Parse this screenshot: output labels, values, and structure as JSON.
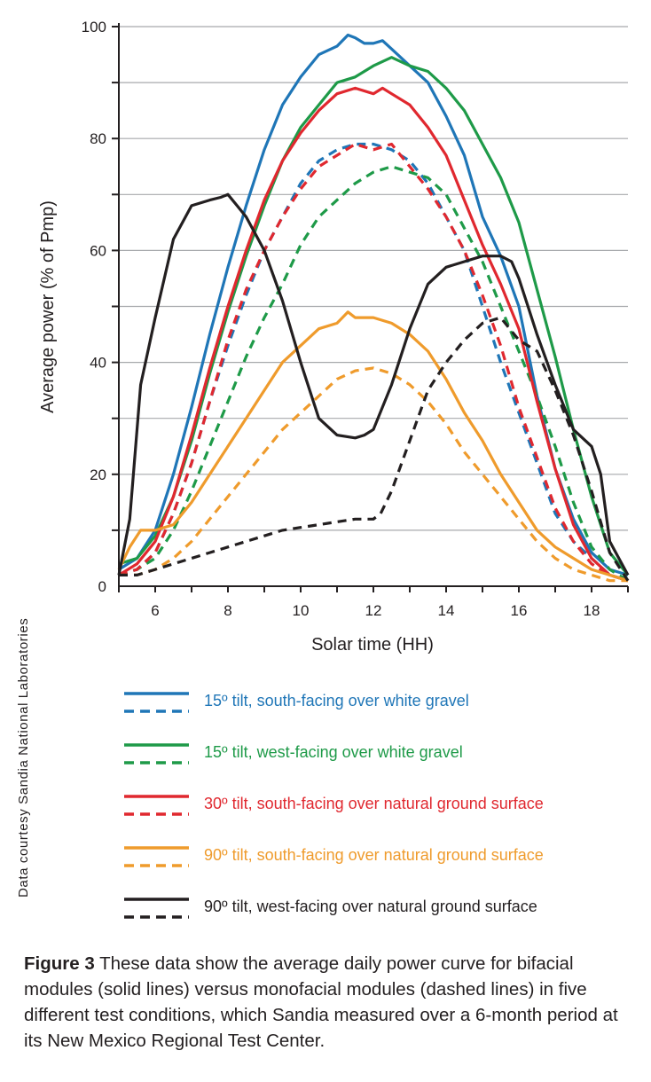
{
  "chart_data": {
    "type": "line",
    "title": "",
    "xlabel": "Solar time (HH)",
    "ylabel": "Average power (% of Pmp)",
    "xlim": [
      5,
      19
    ],
    "ylim": [
      0,
      100
    ],
    "x_ticks": [
      6,
      8,
      10,
      12,
      14,
      16,
      18
    ],
    "y_ticks": [
      0,
      20,
      40,
      60,
      80,
      100
    ],
    "y_tick_labels": [
      "0",
      "20",
      "40",
      "60",
      "80",
      "100"
    ],
    "grid": true,
    "legend_placement": "below",
    "series": [
      {
        "name": "15º tilt, south-facing over white gravel",
        "color": "#1f76b7",
        "style": "solid",
        "x": [
          5,
          5.5,
          6,
          6.5,
          7,
          7.5,
          8,
          8.5,
          9,
          9.5,
          10,
          10.5,
          11,
          11.3,
          11.5,
          11.75,
          12,
          12.25,
          12.5,
          13,
          13.5,
          14,
          14.5,
          15,
          15.5,
          16,
          16.5,
          17,
          17.5,
          18,
          18.5,
          19
        ],
        "y": [
          3,
          5,
          10,
          20,
          32,
          45,
          57,
          68,
          78,
          86,
          91,
          95,
          96.5,
          98.5,
          98,
          97,
          97,
          97.5,
          96,
          93,
          90,
          84,
          77,
          66,
          59,
          50,
          34,
          21,
          12,
          6,
          3,
          2
        ]
      },
      {
        "name": "15º tilt, south-facing over white gravel (monofacial)",
        "color": "#1f76b7",
        "style": "dashed",
        "x": [
          5,
          5.5,
          6,
          6.5,
          7,
          7.5,
          8,
          8.5,
          9,
          9.5,
          10,
          10.5,
          11,
          11.5,
          12,
          12.5,
          13,
          13.5,
          14,
          14.5,
          15,
          15.5,
          16,
          16.5,
          17,
          17.5,
          18,
          18.5,
          19
        ],
        "y": [
          2,
          3,
          6,
          13,
          22,
          33,
          43,
          52,
          60,
          66,
          72,
          76,
          78,
          79,
          79,
          78,
          76,
          72,
          66,
          60,
          50,
          40,
          31,
          22,
          13,
          8,
          5,
          2,
          1
        ]
      },
      {
        "name": "15º tilt, west-facing over white gravel",
        "color": "#1e9a48",
        "style": "solid",
        "x": [
          5,
          5.5,
          6,
          6.5,
          7,
          7.5,
          8,
          8.5,
          9,
          9.5,
          10,
          10.5,
          11,
          11.5,
          12,
          12.5,
          13,
          13.5,
          14,
          14.5,
          15,
          15.5,
          16,
          16.5,
          17,
          17.5,
          18,
          18.5,
          19
        ],
        "y": [
          4,
          5,
          9,
          16,
          26,
          38,
          49,
          59,
          68,
          76,
          82,
          86,
          90,
          91,
          93,
          94.5,
          93,
          92,
          89,
          85,
          79,
          73,
          65,
          53,
          41,
          28,
          16,
          6,
          2
        ]
      },
      {
        "name": "15º tilt, west-facing over white gravel (monofacial)",
        "color": "#1e9a48",
        "style": "dashed",
        "x": [
          5,
          5.5,
          6,
          6.5,
          7,
          7.5,
          8,
          8.5,
          9,
          9.5,
          10,
          10.5,
          11,
          11.5,
          12,
          12.5,
          13,
          13.5,
          14,
          14.5,
          15,
          15.5,
          16,
          16.5,
          17,
          17.5,
          18,
          18.5,
          19
        ],
        "y": [
          2,
          3,
          5,
          10,
          17,
          25,
          33,
          41,
          48,
          54,
          61,
          66,
          69,
          72,
          74,
          75,
          74,
          73,
          70,
          64,
          58,
          50,
          42,
          34,
          25,
          15,
          7,
          3,
          1
        ]
      },
      {
        "name": "30º tilt, south-facing over natural ground surface",
        "color": "#e0282f",
        "style": "solid",
        "x": [
          5,
          5.5,
          6,
          6.5,
          7,
          7.5,
          8,
          8.5,
          9,
          9.5,
          10,
          10.5,
          11,
          11.5,
          12,
          12.25,
          12.5,
          13,
          13.5,
          14,
          14.5,
          15,
          15.5,
          16,
          16.5,
          17,
          17.5,
          18,
          18.5,
          19
        ],
        "y": [
          2,
          4,
          8,
          16,
          27,
          39,
          50,
          60,
          69,
          76,
          81,
          85,
          88,
          89,
          88,
          89,
          88,
          86,
          82,
          77,
          69,
          61,
          54,
          46,
          33,
          21,
          11,
          5,
          2,
          1
        ]
      },
      {
        "name": "30º tilt, south-facing over natural ground surface (monofacial)",
        "color": "#e0282f",
        "style": "dashed",
        "x": [
          5,
          5.5,
          6,
          6.5,
          7,
          7.5,
          8,
          8.5,
          9,
          9.5,
          10,
          10.5,
          11,
          11.5,
          12,
          12.5,
          13,
          13.5,
          14,
          14.5,
          15,
          15.5,
          16,
          16.5,
          17,
          17.5,
          18,
          18.5,
          19
        ],
        "y": [
          2,
          3,
          6,
          13,
          22,
          33,
          44,
          53,
          60,
          66,
          71,
          75,
          77,
          79,
          78,
          79,
          75,
          71,
          66,
          60,
          52,
          43,
          32,
          23,
          14,
          8,
          4,
          2,
          1
        ]
      },
      {
        "name": "90º tilt, south-facing over natural ground surface",
        "color": "#ef9b2c",
        "style": "solid",
        "x": [
          5,
          5.3,
          5.6,
          6,
          6.5,
          7,
          7.5,
          8,
          8.5,
          9,
          9.5,
          10,
          10.5,
          11,
          11.3,
          11.5,
          12,
          12.5,
          13,
          13.5,
          14,
          14.5,
          15,
          15.5,
          16,
          16.5,
          17,
          17.5,
          18,
          18.5,
          19
        ],
        "y": [
          3,
          7,
          10,
          10,
          11,
          15,
          20,
          25,
          30,
          35,
          40,
          43,
          46,
          47,
          49,
          48,
          48,
          47,
          45,
          42,
          37,
          31,
          26,
          20,
          15,
          10,
          7,
          5,
          3,
          2,
          1
        ]
      },
      {
        "name": "90º tilt, south-facing over natural ground surface (monofacial)",
        "color": "#ef9b2c",
        "style": "dashed",
        "x": [
          5,
          5.5,
          6,
          6.5,
          7,
          7.5,
          8,
          8.5,
          9,
          9.5,
          10,
          10.5,
          11,
          11.5,
          12,
          12.5,
          13,
          13.5,
          14,
          14.5,
          15,
          15.5,
          16,
          16.5,
          17,
          17.5,
          18,
          18.5,
          19
        ],
        "y": [
          2,
          2,
          3,
          5,
          8,
          12,
          16,
          20,
          24,
          28,
          31,
          34,
          37,
          38.5,
          39,
          38,
          36,
          33,
          29,
          24,
          20,
          16,
          12,
          8,
          5,
          3,
          2,
          1,
          1
        ]
      },
      {
        "name": "90º tilt, west-facing over natural ground surface",
        "color": "#231f20",
        "style": "solid",
        "x": [
          5,
          5.3,
          5.6,
          6,
          6.5,
          7,
          7.5,
          7.8,
          8,
          8.25,
          8.5,
          9,
          9.5,
          10,
          10.5,
          11,
          11.5,
          11.75,
          12,
          12.5,
          13,
          13.5,
          14,
          14.5,
          15,
          15.5,
          15.8,
          16,
          16.25,
          16.5,
          17,
          17.5,
          18,
          18.25,
          18.5,
          19
        ],
        "y": [
          2,
          12,
          36,
          48,
          62,
          68,
          69,
          69.5,
          70,
          68,
          66,
          60,
          51,
          40,
          30,
          27,
          26.5,
          27,
          28,
          36,
          46,
          54,
          57,
          58,
          59,
          59,
          58,
          55,
          50,
          45,
          36,
          28,
          25,
          20,
          8,
          2
        ]
      },
      {
        "name": "90º tilt, west-facing over natural ground surface (monofacial)",
        "color": "#231f20",
        "style": "dashed",
        "x": [
          5,
          5.5,
          6,
          6.5,
          7,
          7.5,
          8,
          8.5,
          9,
          9.5,
          10,
          10.5,
          11,
          11.5,
          12,
          12.2,
          12.5,
          13,
          13.5,
          14,
          14.5,
          15,
          15.5,
          16,
          16.5,
          17,
          17.5,
          18,
          18.5,
          19
        ],
        "y": [
          2,
          2,
          3,
          4,
          5,
          6,
          7,
          8,
          9,
          10,
          10.5,
          11,
          11.5,
          12,
          12,
          13,
          17,
          26,
          35,
          40,
          44,
          47,
          48,
          44,
          42,
          35,
          27,
          17,
          6,
          1
        ]
      }
    ]
  },
  "legend": [
    {
      "label": "15º tilt, south-facing over white gravel",
      "color": "#1f76b7"
    },
    {
      "label": "15º tilt, west-facing over white gravel",
      "color": "#1e9a48"
    },
    {
      "label": "30º tilt, south-facing over natural ground surface",
      "color": "#e0282f"
    },
    {
      "label": "90º tilt, south-facing over natural ground surface",
      "color": "#ef9b2c"
    },
    {
      "label": "90º tilt, west-facing over natural ground surface",
      "color": "#231f20"
    }
  ],
  "credit": "Data courtesy Sandia National Laboratories",
  "caption": {
    "label": "Figure 3",
    "text": "These data show the average daily power curve for bifacial modules (solid lines) versus monofacial modules (dashed lines) in five different test conditions, which Sandia measured over a 6-month period at its New Mexico Regional Test Center."
  }
}
